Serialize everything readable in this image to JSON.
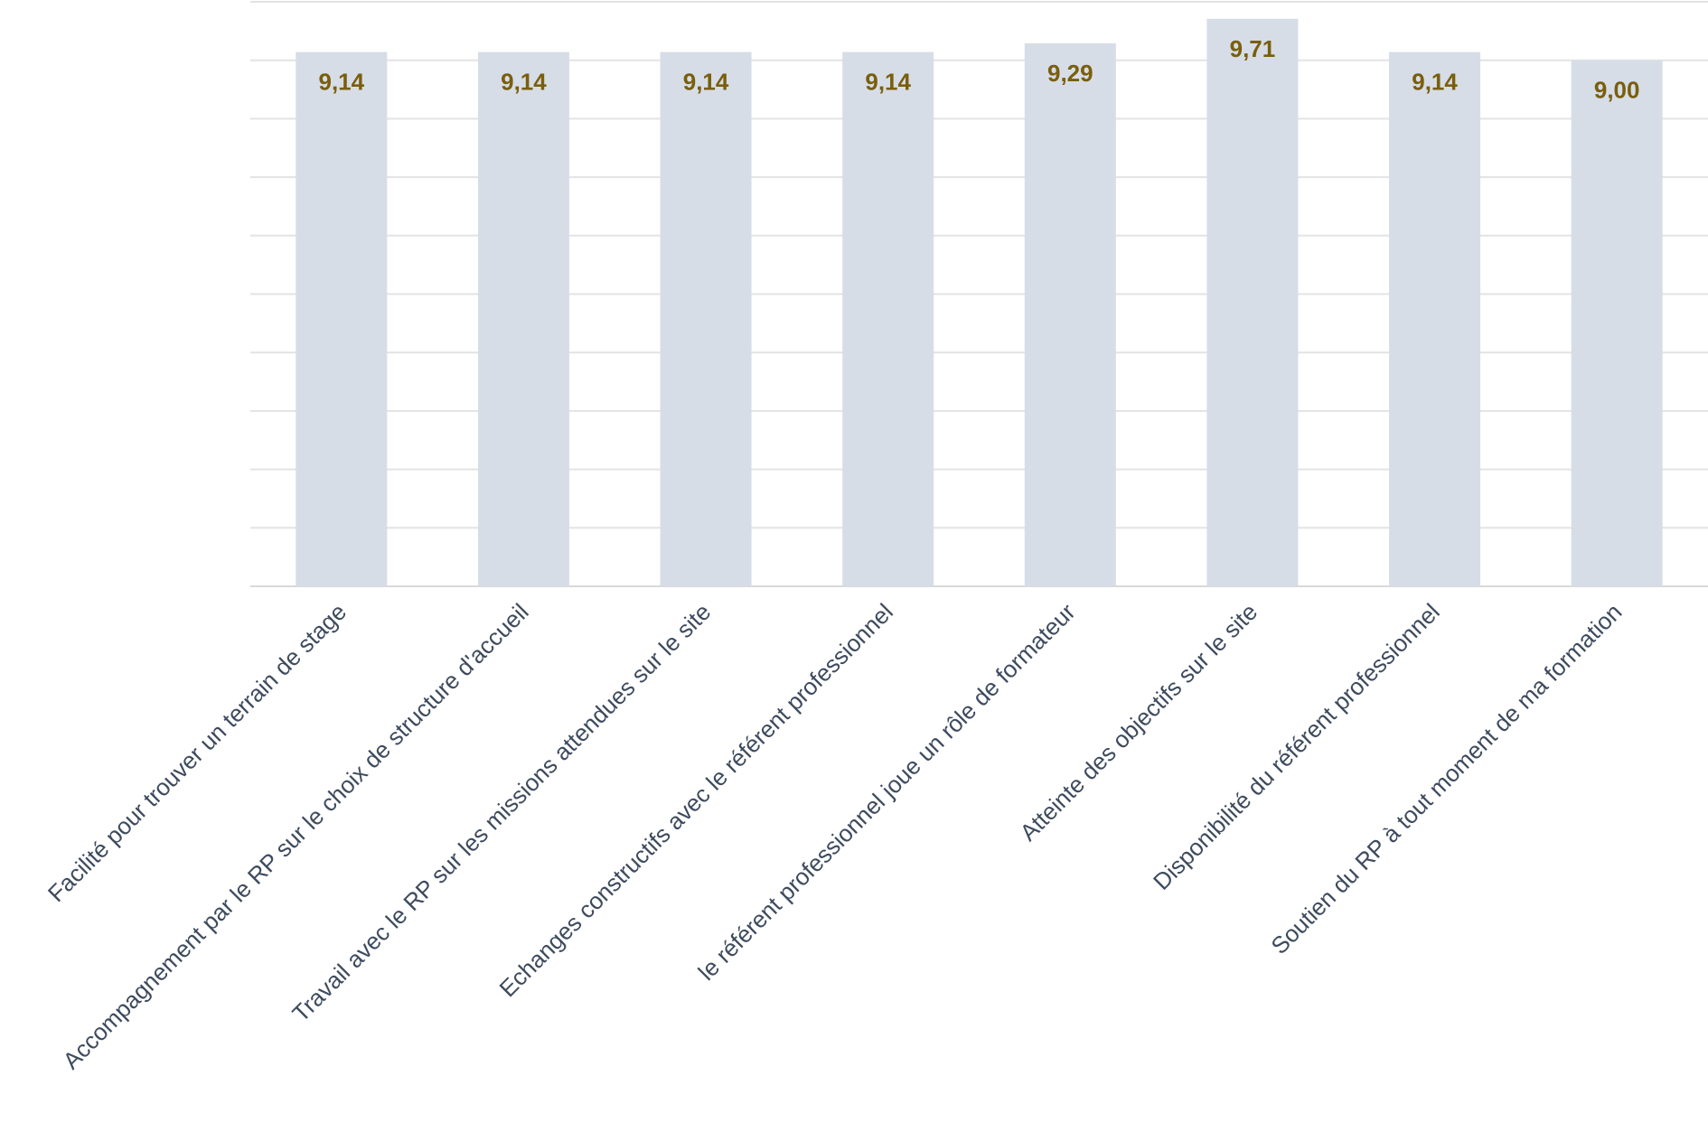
{
  "chart_data": {
    "type": "bar",
    "categories": [
      "Facilité pour trouver un terrain de stage",
      "Accompagnement par le RP sur le choix de structure d'accueil",
      "Travail avec le RP sur les missions attendues sur le site",
      "Echanges constructifs avec le référent professionnel",
      "le référent professionnel joue un rôle de formateur",
      "Atteinte des objectifs sur le site",
      "Disponibilité du référent professionnel",
      "Soutien du RP à tout moment de ma formation"
    ],
    "values": [
      9.14,
      9.14,
      9.14,
      9.14,
      9.29,
      9.71,
      9.14,
      9.0
    ],
    "data_labels": [
      "9,14",
      "9,14",
      "9,14",
      "9,14",
      "9,29",
      "9,71",
      "9,14",
      "9,00"
    ],
    "ylim": [
      0,
      10
    ],
    "grid": true,
    "colors": {
      "bar": "#d6dde7",
      "data_label": "#7a5e0c",
      "category_label": "#3e4b5e",
      "grid": "#e3e3e3"
    }
  }
}
